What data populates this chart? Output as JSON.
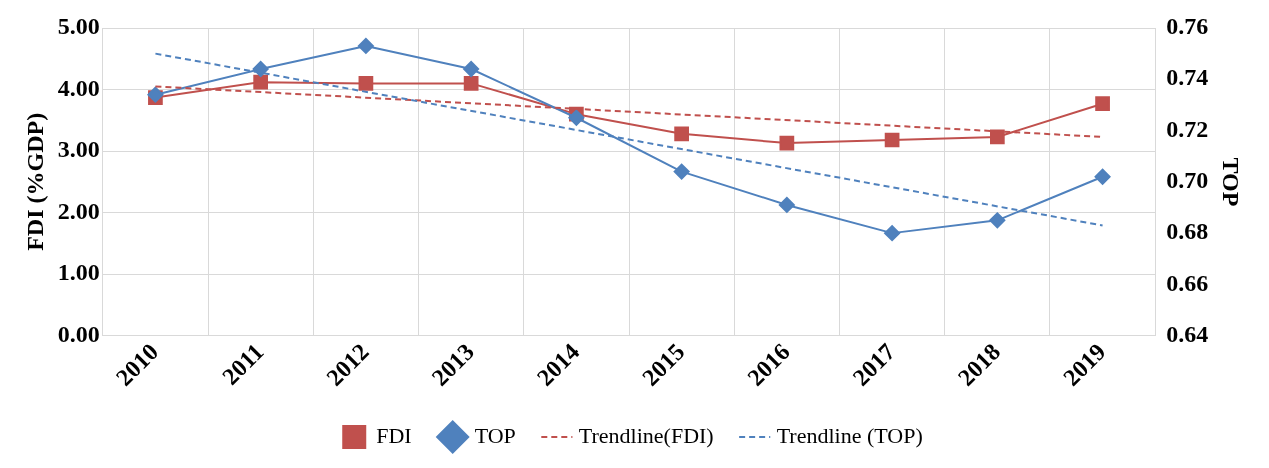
{
  "chart_data": {
    "type": "line",
    "categories": [
      "2010",
      "2011",
      "2012",
      "2013",
      "2014",
      "2015",
      "2016",
      "2017",
      "2018",
      "2019"
    ],
    "ylabel": "FDI (%GDP)",
    "y2label": "TOP",
    "ylim": [
      0,
      5
    ],
    "yticks": [
      {
        "value": 0,
        "label": "0.00"
      },
      {
        "value": 1,
        "label": "1.00"
      },
      {
        "value": 2,
        "label": "2.00"
      },
      {
        "value": 3,
        "label": "3.00"
      },
      {
        "value": 4,
        "label": "4.00"
      },
      {
        "value": 5,
        "label": "5.00"
      }
    ],
    "y2lim": [
      0.64,
      0.76
    ],
    "y2ticks": [
      {
        "value": 0.64,
        "label": "0.64"
      },
      {
        "value": 0.66,
        "label": "0.66"
      },
      {
        "value": 0.68,
        "label": "0.68"
      },
      {
        "value": 0.7,
        "label": "0.70"
      },
      {
        "value": 0.72,
        "label": "0.72"
      },
      {
        "value": 0.74,
        "label": "0.74"
      },
      {
        "value": 0.76,
        "label": "0.76"
      }
    ],
    "grid": true,
    "legend": "bottom",
    "series": [
      {
        "name": "FDI",
        "color": "#c0504d",
        "marker": "square",
        "line_style": "solid",
        "values": [
          3.87,
          4.12,
          4.1,
          4.1,
          3.6,
          3.28,
          3.13,
          3.18,
          3.23,
          3.77
        ]
      },
      {
        "name": "TOP",
        "color": "#4f81bd",
        "marker": "diamond",
        "line_style": "solid",
        "axis": "y2",
        "values": [
          0.734,
          0.744,
          0.753,
          0.744,
          0.725,
          0.704,
          0.691,
          0.68,
          0.685,
          0.702
        ]
      },
      {
        "name": "Trendline(FDI)",
        "color": "#c0504d",
        "marker": "none",
        "line_style": "dashed",
        "values": [
          4.05,
          null,
          null,
          null,
          null,
          null,
          null,
          null,
          null,
          3.23
        ]
      },
      {
        "name": "Trendline (TOP)",
        "color": "#4f81bd",
        "marker": "none",
        "line_style": "dashed",
        "axis": "y2",
        "values": [
          0.75,
          null,
          null,
          null,
          null,
          null,
          null,
          null,
          null,
          0.683
        ]
      }
    ]
  }
}
